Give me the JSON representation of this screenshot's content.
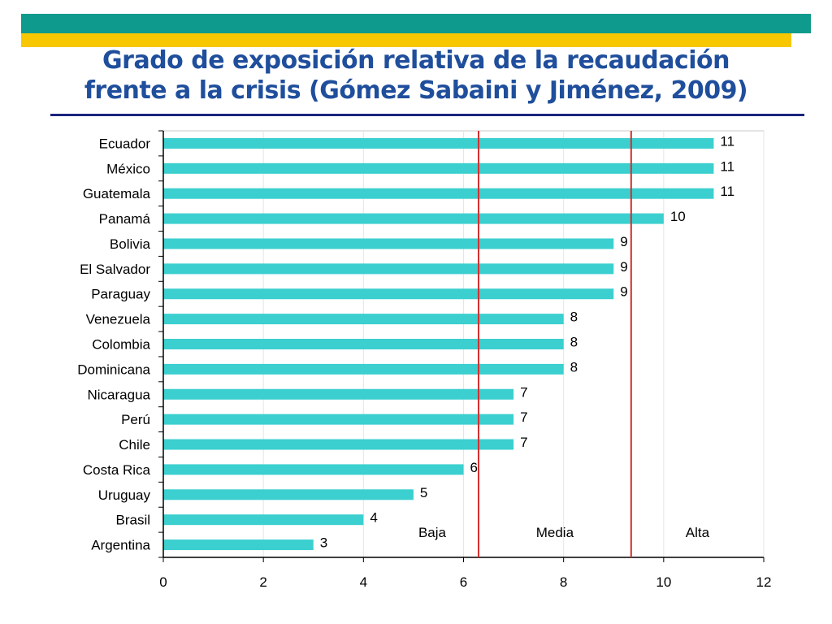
{
  "slide": {
    "title_line1": "Grado de exposición relativa de la recaudación",
    "title_line2": "frente a la crisis (Gómez Sabaini y Jiménez, 2009)"
  },
  "colors": {
    "teal_band": "#0e9a8c",
    "yellow_band": "#f7c701",
    "title": "#1f4e9c",
    "title_rule": "#1a237e",
    "bar": "#3ccfcf",
    "threshold_line": "#d32f2f"
  },
  "chart_data": {
    "type": "bar",
    "orientation": "horizontal",
    "categories": [
      "Ecuador",
      "México",
      "Guatemala",
      "Panamá",
      "Bolivia",
      "El Salvador",
      "Paraguay",
      "Venezuela",
      "Colombia",
      "Dominicana",
      "Nicaragua",
      "Perú",
      "Chile",
      "Costa Rica",
      "Uruguay",
      "Brasil",
      "Argentina"
    ],
    "values": [
      11,
      11,
      11,
      10,
      9,
      9,
      9,
      8,
      8,
      8,
      7,
      7,
      7,
      6,
      5,
      4,
      3
    ],
    "xlim": [
      0,
      12
    ],
    "xticks": [
      0,
      2,
      4,
      6,
      8,
      10,
      12
    ],
    "thresholds": [
      6.3,
      9.35
    ],
    "zone_labels": [
      "Baja",
      "Media",
      "Alta"
    ],
    "grid": true,
    "legend": "none"
  }
}
